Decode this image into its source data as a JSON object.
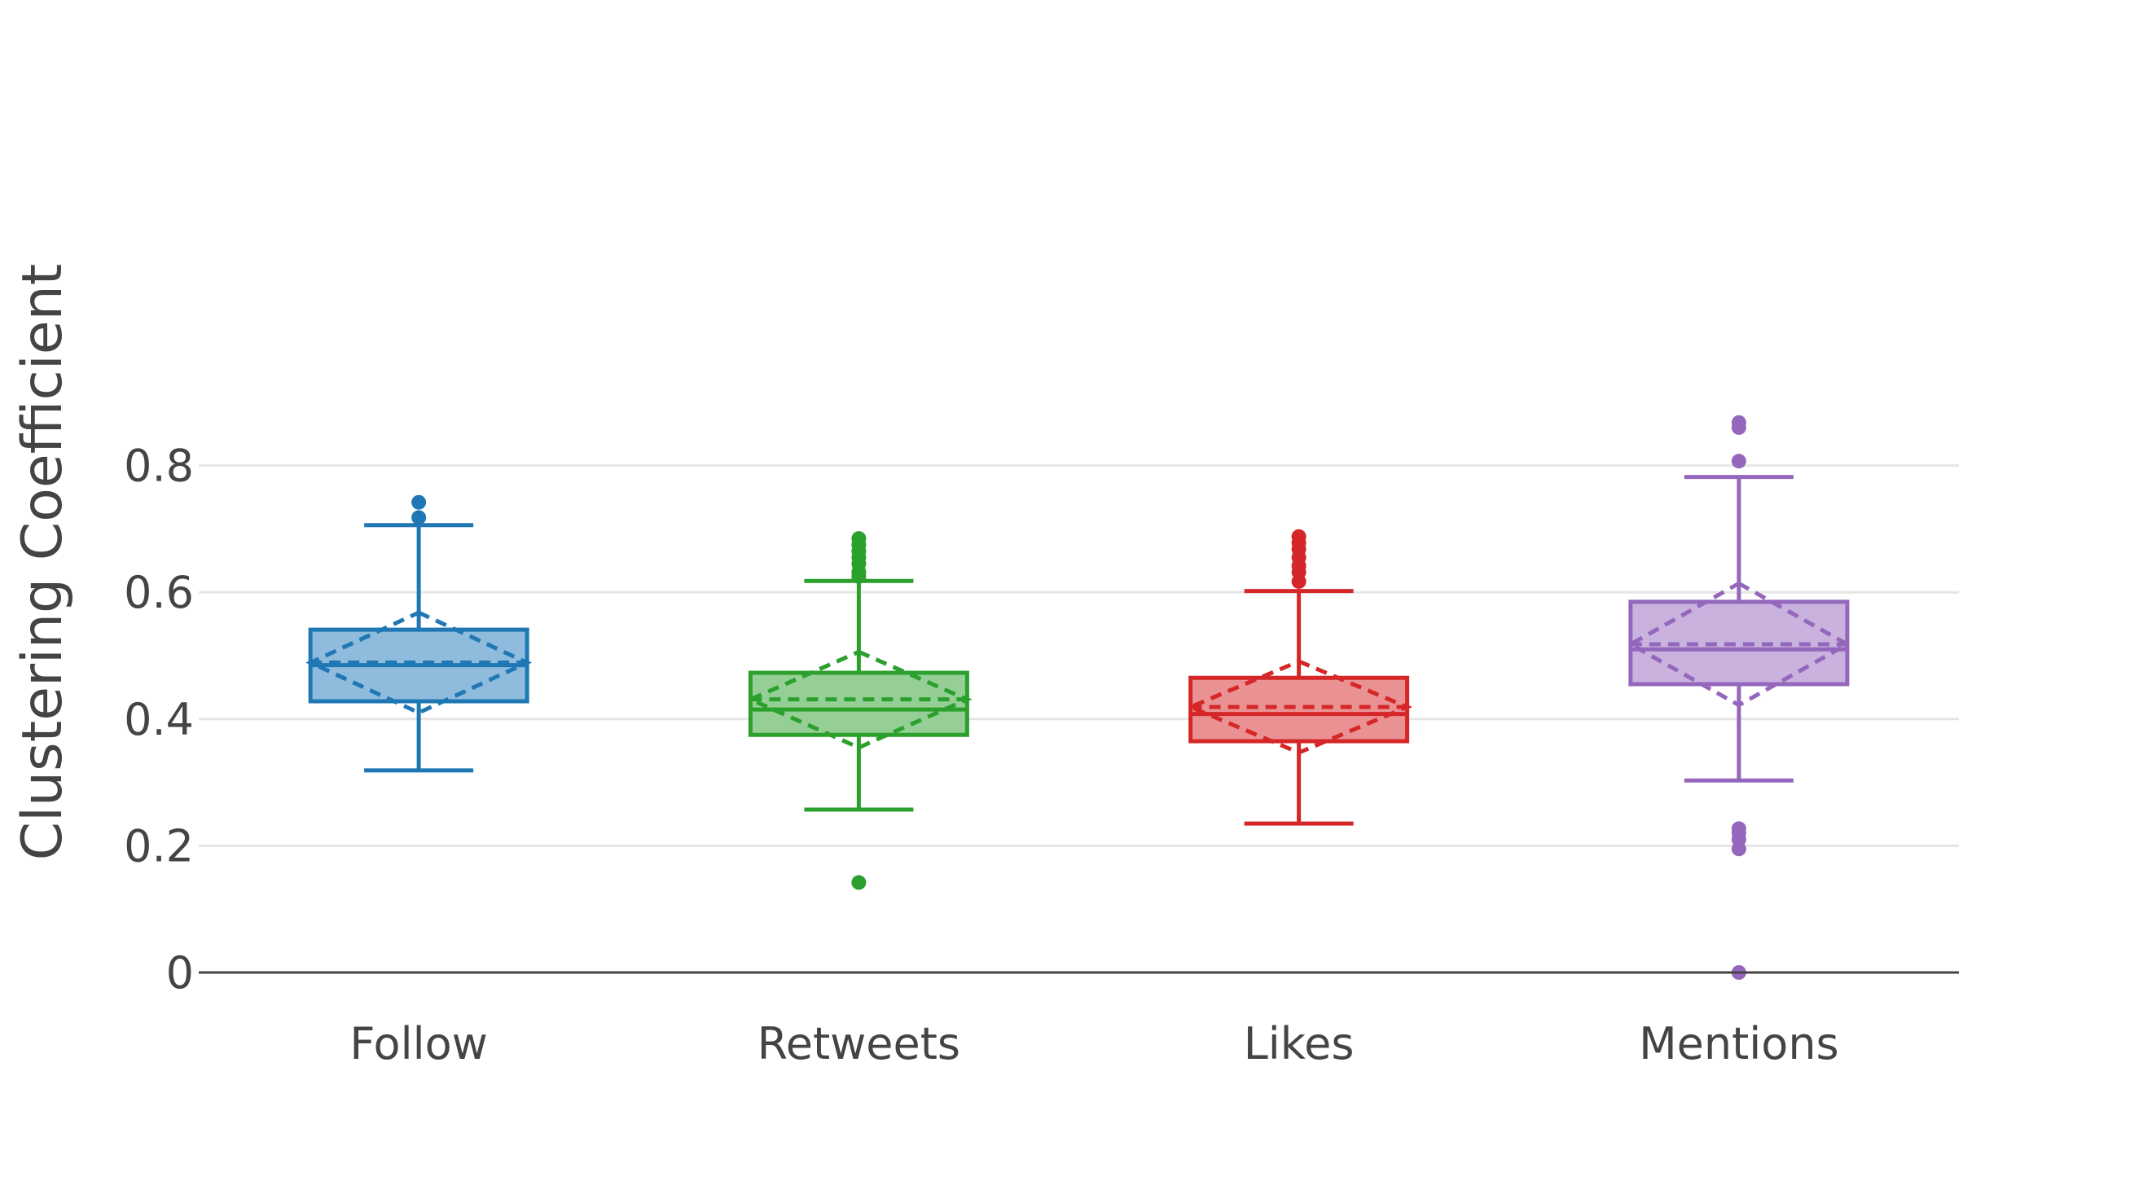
{
  "chart_data": {
    "type": "box",
    "title": "",
    "xlabel": "",
    "ylabel": "Clustering Coefficient",
    "ylim": [
      0,
      0.92
    ],
    "yticks": [
      0,
      0.2,
      0.4,
      0.6,
      0.8
    ],
    "ytick_labels": [
      "0",
      "0.2",
      "0.4",
      "0.6",
      "0.8"
    ],
    "grid": true,
    "legend": "none",
    "categories": [
      "Follow",
      "Retweets",
      "Likes",
      "Mentions"
    ],
    "series": [
      {
        "category": "Follow",
        "color": "#1f77b4",
        "fill": "#8fbbdc",
        "q1": 0.428,
        "median": 0.485,
        "q3": 0.541,
        "lower_whisker": 0.319,
        "upper_whisker": 0.706,
        "mean": 0.489,
        "mean_minus_sd": 0.41,
        "mean_plus_sd": 0.568,
        "outliers": [
          0.742,
          0.718
        ]
      },
      {
        "category": "Retweets",
        "color": "#2ca02c",
        "fill": "#95cf95",
        "q1": 0.375,
        "median": 0.415,
        "q3": 0.473,
        "lower_whisker": 0.257,
        "upper_whisker": 0.618,
        "mean": 0.431,
        "mean_minus_sd": 0.355,
        "mean_plus_sd": 0.506,
        "outliers": [
          0.685,
          0.675,
          0.665,
          0.655,
          0.645,
          0.632,
          0.625,
          0.142
        ]
      },
      {
        "category": "Likes",
        "color": "#d62728",
        "fill": "#ea9293",
        "q1": 0.365,
        "median": 0.408,
        "q3": 0.465,
        "lower_whisker": 0.235,
        "upper_whisker": 0.602,
        "mean": 0.419,
        "mean_minus_sd": 0.347,
        "mean_plus_sd": 0.491,
        "outliers": [
          0.688,
          0.678,
          0.668,
          0.655,
          0.642,
          0.632,
          0.617
        ]
      },
      {
        "category": "Mentions",
        "color": "#9467bd",
        "fill": "#c9b2de",
        "q1": 0.455,
        "median": 0.51,
        "q3": 0.585,
        "lower_whisker": 0.303,
        "upper_whisker": 0.782,
        "mean": 0.518,
        "mean_minus_sd": 0.422,
        "mean_plus_sd": 0.614,
        "outliers": [
          0.868,
          0.86,
          0.807,
          0.227,
          0.22,
          0.21,
          0.195,
          0.0
        ]
      }
    ]
  }
}
